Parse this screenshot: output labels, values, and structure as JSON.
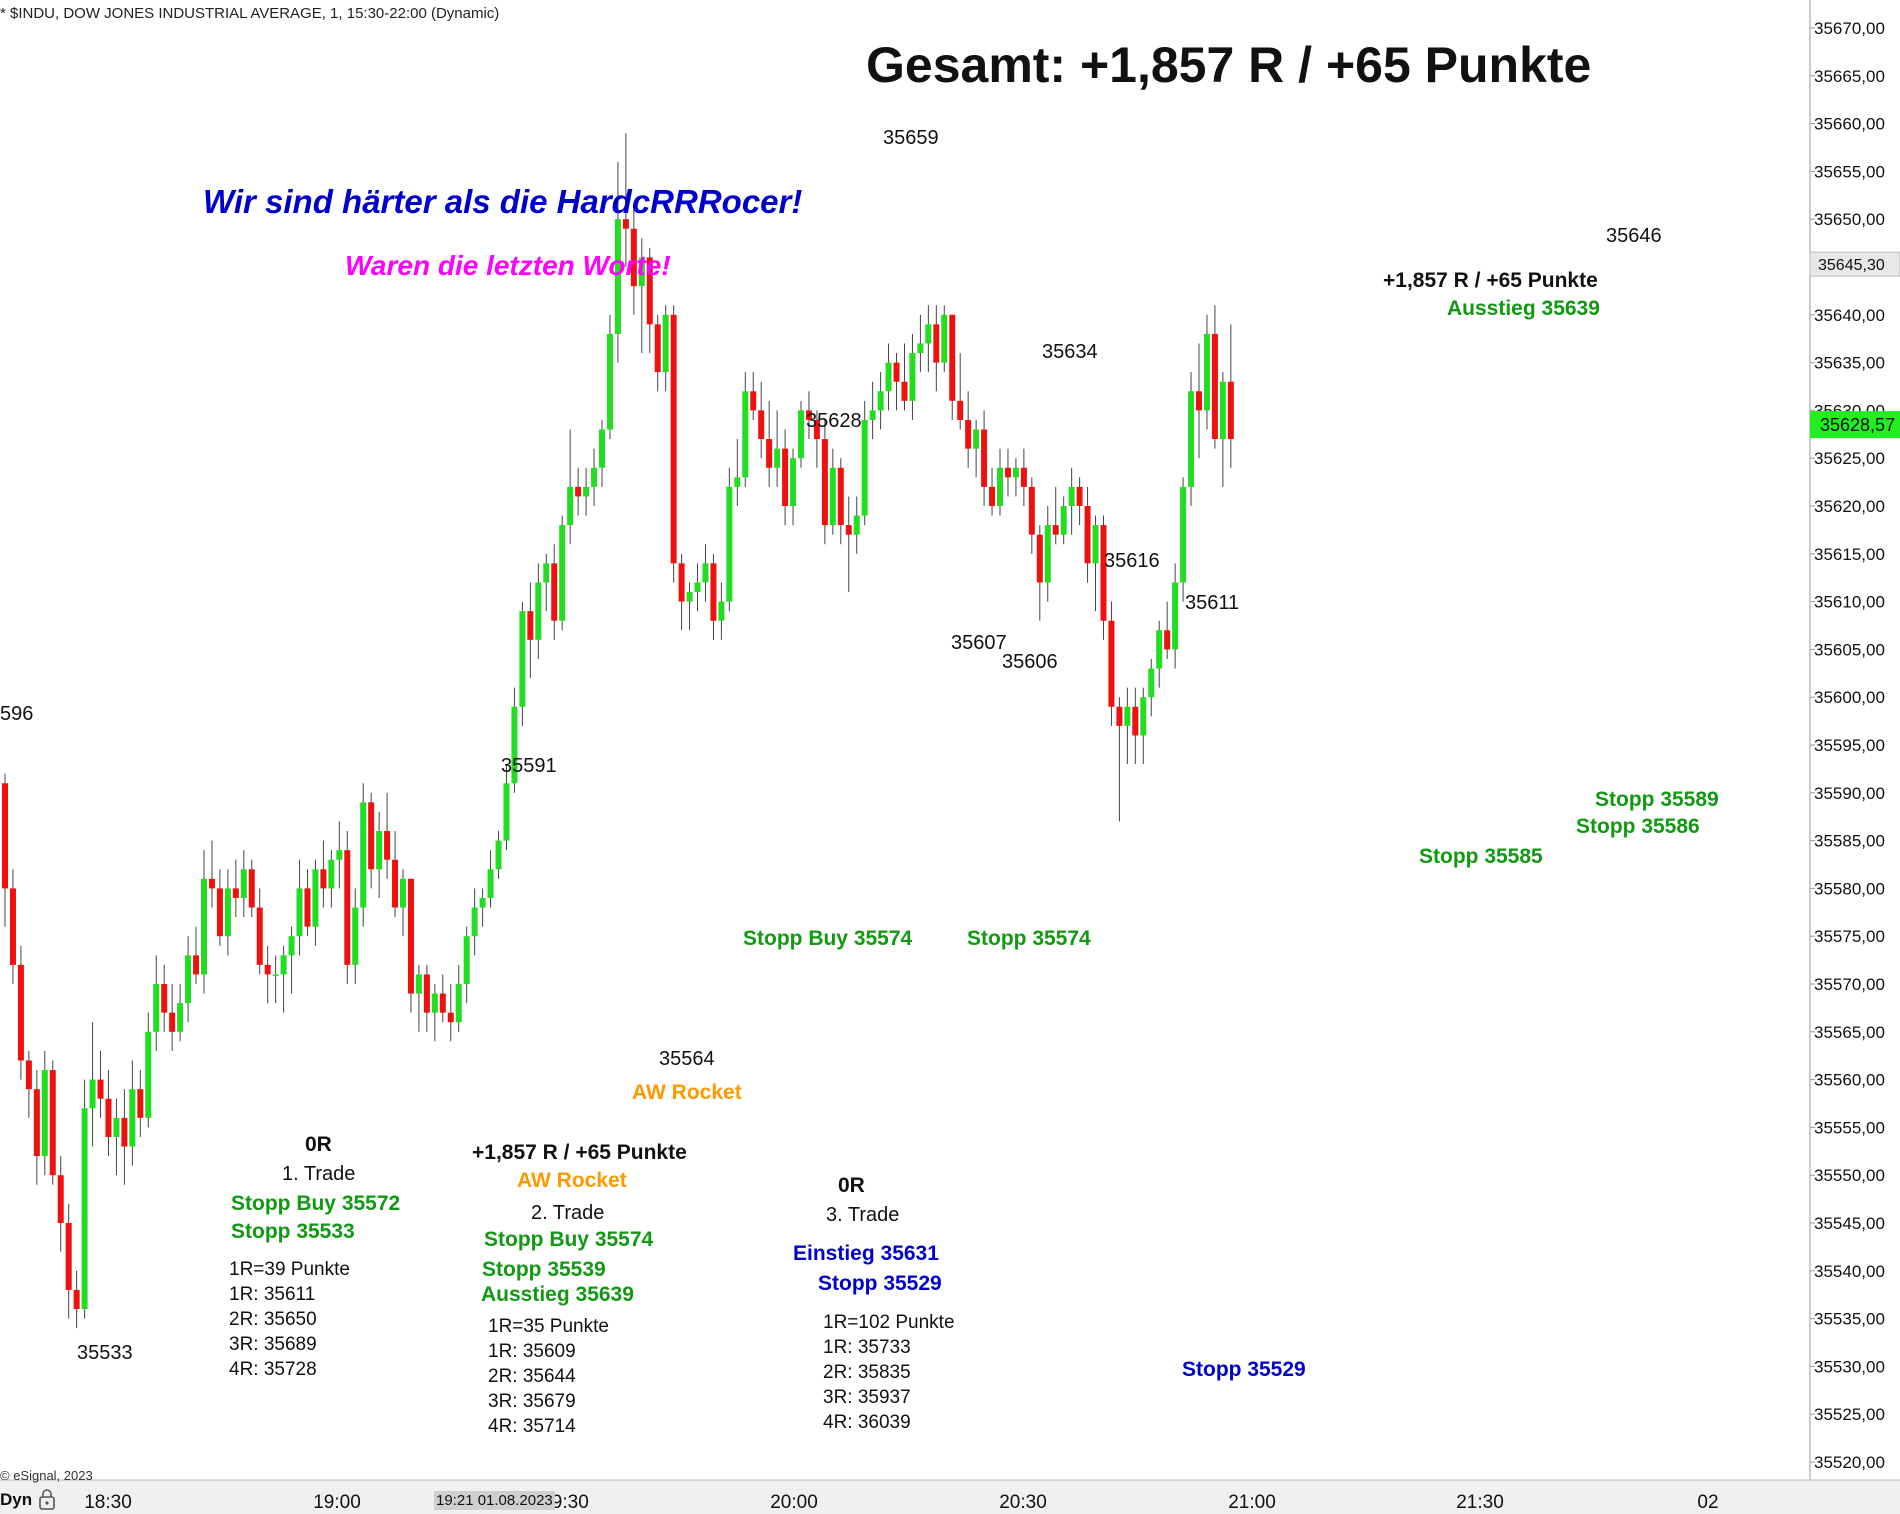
{
  "header": "* $INDU, DOW JONES INDUSTRIAL AVERAGE, 1, 15:30-22:00 (Dynamic)",
  "copyright": "© eSignal, 2023",
  "dyn_label": "Dyn",
  "lock_icon": "lock-icon",
  "colors": {
    "up": "#22dd22",
    "down": "#ee1111",
    "wick": "#444444",
    "green_text": "#119911",
    "blue_text": "#0000cc",
    "orange_text": "#ff9900",
    "magenta_text": "#ff00ff",
    "price_box": "#22ee22"
  },
  "chart_data": {
    "type": "candlestick",
    "title": "Gesamt: +1,857 R / +65 Punkte",
    "ylim": [
      35517,
      35672
    ],
    "x_ticks": [
      "18:30",
      "19:00",
      "19:30",
      "20:00",
      "20:30",
      "21:00",
      "21:30",
      "02"
    ],
    "y_ticks": [
      "35670,00",
      "35665,00",
      "35660,00",
      "35655,00",
      "35650,00",
      "35645,00",
      "35640,00",
      "35635,00",
      "35630,00",
      "35625,00",
      "35620,00",
      "35615,00",
      "35610,00",
      "35605,00",
      "35600,00",
      "35595,00",
      "35590,00",
      "35585,00",
      "35580,00",
      "35575,00",
      "35570,00",
      "35565,00",
      "35560,00",
      "35555,00",
      "35550,00",
      "35545,00",
      "35540,00",
      "35535,00",
      "35530,00",
      "35525,00",
      "35520,00"
    ],
    "current_price": "35628,57",
    "high_marker": "35645,30",
    "cursor_label": "19:21 01.08.2023",
    "candles": [
      [
        35591,
        35592,
        35576,
        35580
      ],
      [
        35580,
        35582,
        35570,
        35572
      ],
      [
        35572,
        35574,
        35560,
        35562
      ],
      [
        35562,
        35563,
        35556,
        35559
      ],
      [
        35559,
        35561,
        35549,
        35552
      ],
      [
        35552,
        35563,
        35550,
        35561
      ],
      [
        35561,
        35562,
        35549,
        35550
      ],
      [
        35550,
        35552,
        35542,
        35545
      ],
      [
        35545,
        35547,
        35535,
        35538
      ],
      [
        35538,
        35540,
        35534,
        35536
      ],
      [
        35536,
        35560,
        35535,
        35557
      ],
      [
        35557,
        35566,
        35553,
        35560
      ],
      [
        35560,
        35563,
        35556,
        35558
      ],
      [
        35558,
        35561,
        35552,
        35554
      ],
      [
        35554,
        35558,
        35550,
        35556
      ],
      [
        35556,
        35559,
        35549,
        35553
      ],
      [
        35553,
        35562,
        35551,
        35559
      ],
      [
        35559,
        35561,
        35554,
        35556
      ],
      [
        35556,
        35567,
        35555,
        35565
      ],
      [
        35565,
        35573,
        35563,
        35570
      ],
      [
        35570,
        35572,
        35565,
        35567
      ],
      [
        35567,
        35570,
        35563,
        35565
      ],
      [
        35565,
        35570,
        35564,
        35568
      ],
      [
        35568,
        35575,
        35566,
        35573
      ],
      [
        35573,
        35576,
        35570,
        35571
      ],
      [
        35571,
        35584,
        35569,
        35581
      ],
      [
        35581,
        35585,
        35578,
        35580
      ],
      [
        35580,
        35582,
        35574,
        35575
      ],
      [
        35575,
        35582,
        35573,
        35580
      ],
      [
        35580,
        35583,
        35577,
        35579
      ],
      [
        35579,
        35584,
        35577,
        35582
      ],
      [
        35582,
        35583,
        35577,
        35578
      ],
      [
        35578,
        35580,
        35571,
        35572
      ],
      [
        35572,
        35574,
        35568,
        35571
      ],
      [
        35571,
        35573,
        35568,
        35571
      ],
      [
        35571,
        35574,
        35567,
        35573
      ],
      [
        35573,
        35576,
        35569,
        35575
      ],
      [
        35575,
        35583,
        35573,
        35580
      ],
      [
        35580,
        35582,
        35575,
        35576
      ],
      [
        35576,
        35583,
        35574,
        35582
      ],
      [
        35582,
        35585,
        35578,
        35580
      ],
      [
        35580,
        35584,
        35578,
        35583
      ],
      [
        35583,
        35587,
        35580,
        35584
      ],
      [
        35584,
        35586,
        35570,
        35572
      ],
      [
        35572,
        35580,
        35570,
        35578
      ],
      [
        35578,
        35591,
        35576,
        35589
      ],
      [
        35589,
        35590,
        35580,
        35582
      ],
      [
        35582,
        35588,
        35579,
        35586
      ],
      [
        35586,
        35590,
        35581,
        35583
      ],
      [
        35583,
        35586,
        35577,
        35578
      ],
      [
        35578,
        35582,
        35575,
        35581
      ],
      [
        35581,
        35581,
        35567,
        35569
      ],
      [
        35569,
        35572,
        35565,
        35571
      ],
      [
        35571,
        35572,
        35565,
        35567
      ],
      [
        35567,
        35570,
        35564,
        35569
      ],
      [
        35569,
        35571,
        35566,
        35567
      ],
      [
        35567,
        35570,
        35564,
        35566
      ],
      [
        35566,
        35572,
        35565,
        35570
      ],
      [
        35570,
        35576,
        35568,
        35575
      ],
      [
        35575,
        35580,
        35573,
        35578
      ],
      [
        35578,
        35580,
        35576,
        35579
      ],
      [
        35579,
        35584,
        35578,
        35582
      ],
      [
        35582,
        35586,
        35581,
        35585
      ],
      [
        35585,
        35593,
        35584,
        35591
      ],
      [
        35591,
        35601,
        35590,
        35599
      ],
      [
        35599,
        35610,
        35597,
        35609
      ],
      [
        35609,
        35612,
        35602,
        35606
      ],
      [
        35606,
        35614,
        35604,
        35612
      ],
      [
        35612,
        35615,
        35609,
        35614
      ],
      [
        35614,
        35616,
        35606,
        35608
      ],
      [
        35608,
        35619,
        35607,
        35618
      ],
      [
        35618,
        35628,
        35616,
        35622
      ],
      [
        35622,
        35624,
        35619,
        35621
      ],
      [
        35621,
        35624,
        35619,
        35622
      ],
      [
        35622,
        35626,
        35620,
        35624
      ],
      [
        35624,
        35629,
        35622,
        35628
      ],
      [
        35628,
        35640,
        35627,
        35638
      ],
      [
        35638,
        35656,
        35635,
        35650
      ],
      [
        35650,
        35659,
        35645,
        35649
      ],
      [
        35649,
        35651,
        35640,
        35643
      ],
      [
        35643,
        35648,
        35636,
        35646
      ],
      [
        35646,
        35647,
        35636,
        35639
      ],
      [
        35639,
        35640,
        35632,
        35634
      ],
      [
        35634,
        35641,
        35632,
        35640
      ],
      [
        35640,
        35641,
        35612,
        35614
      ],
      [
        35614,
        35615,
        35607,
        35610
      ],
      [
        35610,
        35612,
        35607,
        35611
      ],
      [
        35611,
        35614,
        35609,
        35612
      ],
      [
        35612,
        35616,
        35610,
        35614
      ],
      [
        35614,
        35615,
        35606,
        35608
      ],
      [
        35608,
        35612,
        35606,
        35610
      ],
      [
        35610,
        35624,
        35609,
        35622
      ],
      [
        35622,
        35627,
        35620,
        35623
      ],
      [
        35623,
        35634,
        35622,
        35632
      ],
      [
        35632,
        35634,
        35629,
        35630
      ],
      [
        35630,
        35633,
        35625,
        35627
      ],
      [
        35627,
        35631,
        35622,
        35624
      ],
      [
        35624,
        35630,
        35622,
        35626
      ],
      [
        35626,
        35628,
        35618,
        35620
      ],
      [
        35620,
        35626,
        35618,
        35625
      ],
      [
        35625,
        35631,
        35624,
        35630
      ],
      [
        35630,
        35632,
        35627,
        35629
      ],
      [
        35629,
        35630,
        35624,
        35627
      ],
      [
        35627,
        35629,
        35616,
        35618
      ],
      [
        35618,
        35626,
        35617,
        35624
      ],
      [
        35624,
        35625,
        35616,
        35618
      ],
      [
        35618,
        35621,
        35611,
        35617
      ],
      [
        35617,
        35621,
        35615,
        35619
      ],
      [
        35619,
        35631,
        35618,
        35629
      ],
      [
        35629,
        35633,
        35627,
        35630
      ],
      [
        35630,
        35634,
        35628,
        35632
      ],
      [
        35632,
        35637,
        35630,
        35635
      ],
      [
        35635,
        35636,
        35630,
        35633
      ],
      [
        35633,
        35637,
        35630,
        35631
      ],
      [
        35631,
        35638,
        35629,
        35636
      ],
      [
        35636,
        35640,
        35634,
        35637
      ],
      [
        35637,
        35641,
        35634,
        35639
      ],
      [
        35639,
        35641,
        35632,
        35635
      ],
      [
        35635,
        35641,
        35634,
        35640
      ],
      [
        35640,
        35640,
        35629,
        35631
      ],
      [
        35631,
        35636,
        35628,
        35629
      ],
      [
        35629,
        35632,
        35624,
        35626
      ],
      [
        35626,
        35629,
        35623,
        35628
      ],
      [
        35628,
        35630,
        35620,
        35622
      ],
      [
        35622,
        35624,
        35619,
        35620
      ],
      [
        35620,
        35626,
        35619,
        35624
      ],
      [
        35624,
        35626,
        35621,
        35623
      ],
      [
        35623,
        35625,
        35621,
        35624
      ],
      [
        35624,
        35626,
        35620,
        35622
      ],
      [
        35622,
        35623,
        35615,
        35617
      ],
      [
        35617,
        35618,
        35608,
        35612
      ],
      [
        35612,
        35620,
        35610,
        35618
      ],
      [
        35618,
        35622,
        35616,
        35617
      ],
      [
        35617,
        35621,
        35616,
        35620
      ],
      [
        35620,
        35624,
        35617,
        35622
      ],
      [
        35622,
        35623,
        35618,
        35620
      ],
      [
        35620,
        35622,
        35612,
        35614
      ],
      [
        35614,
        35619,
        35609,
        35618
      ],
      [
        35618,
        35619,
        35606,
        35608
      ],
      [
        35608,
        35610,
        35597,
        35599
      ],
      [
        35599,
        35600,
        35587,
        35597
      ],
      [
        35597,
        35601,
        35593,
        35599
      ],
      [
        35599,
        35601,
        35593,
        35596
      ],
      [
        35596,
        35601,
        35593,
        35600
      ],
      [
        35600,
        35604,
        35598,
        35603
      ],
      [
        35603,
        35608,
        35601,
        35607
      ],
      [
        35607,
        35610,
        35604,
        35605
      ],
      [
        35605,
        35614,
        35603,
        35612
      ],
      [
        35612,
        35623,
        35610,
        35622
      ],
      [
        35622,
        35634,
        35620,
        35632
      ],
      [
        35632,
        35637,
        35625,
        35630
      ],
      [
        35630,
        35640,
        35628,
        35638
      ],
      [
        35638,
        35641,
        35626,
        35627
      ],
      [
        35627,
        35634,
        35622,
        35633
      ],
      [
        35633,
        35639,
        35624,
        35627
      ]
    ],
    "price_labels": [
      "596",
      "35533",
      "35591",
      "35564",
      "35628",
      "35659",
      "35607",
      "35606",
      "35634",
      "35616",
      "35611",
      "35646"
    ]
  },
  "annotations": {
    "headline_blue": "Wir sind härter als die HardcRRRocer!",
    "headline_magenta": "Waren die letzten Worte!",
    "aw_rocket_1": "AW Rocket",
    "aw_rocket_2": "AW Rocket",
    "stopp_buy_mid": "Stopp Buy 35574",
    "stopp_mid": "Stopp 35574",
    "result_right": "+1,857 R / +65 Punkte",
    "ausstieg_right": "Ausstieg 35639",
    "stopp_35589": "Stopp 35589",
    "stopp_35586": "Stopp 35586",
    "stopp_35585": "Stopp 35585",
    "stopp_35529": "Stopp 35529",
    "trade1": {
      "result": "0R",
      "title": "1. Trade",
      "entry": "Stopp Buy 35572",
      "stop": "Stopp 35533",
      "r1": "1R=39 Punkte",
      "t1": "1R: 35611",
      "t2": "2R: 35650",
      "t3": "3R: 35689",
      "t4": "4R: 35728"
    },
    "trade2": {
      "result": "+1,857 R / +65 Punkte",
      "title": "2. Trade",
      "entry": "Stopp Buy 35574",
      "stop": "Stopp 35539",
      "exit": "Ausstieg 35639",
      "r1": "1R=35 Punkte",
      "t1": "1R: 35609",
      "t2": "2R: 35644",
      "t3": "3R: 35679",
      "t4": "4R: 35714"
    },
    "trade3": {
      "result": "0R",
      "title": "3. Trade",
      "entry": "Einstieg 35631",
      "stop": "Stopp 35529",
      "r1": "1R=102 Punkte",
      "t1": "1R: 35733",
      "t2": "2R: 35835",
      "t3": "3R: 35937",
      "t4": "4R: 36039"
    }
  }
}
